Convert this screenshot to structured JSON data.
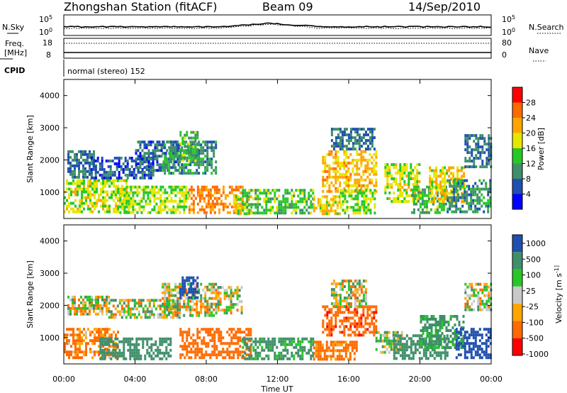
{
  "header": {
    "station": "Zhongshan Station (fitACF)",
    "beam": "Beam 09",
    "date": "14/Sep/2010"
  },
  "top_panels": {
    "nsky_label": "N.Sky",
    "nsearch_label": "N.Search",
    "nsky_ticks": [
      "10^5",
      "10^0"
    ],
    "nsearch_ticks": [
      "10^5",
      "10^0"
    ],
    "freq_label_1": "Freq.",
    "freq_label_2": "[MHz]",
    "freq_ticks": [
      "18",
      "8"
    ],
    "nave_label": "Nave",
    "nave_ticks": [
      "80",
      "0"
    ],
    "cpid_label": "CPID",
    "cpid_value": "normal (stereo) 152"
  },
  "colors": {
    "power_scale": [
      "#0000ff",
      "#1f4fb0",
      "#3f8f6a",
      "#26c826",
      "#e6e600",
      "#ffa500",
      "#ff6a00",
      "#ff0000"
    ],
    "velocity_scale": [
      "#1f4fb0",
      "#3f8f6a",
      "#26c826",
      "#c8c8c8",
      "#ffa500",
      "#ff6a00",
      "#ff0000"
    ]
  },
  "chart_data": [
    {
      "type": "heatmap",
      "title": "",
      "xlabel": "",
      "ylabel": "Slant Range [km]",
      "x_ticks": [
        "00:00",
        "04:00",
        "08:00",
        "12:00",
        "16:00",
        "20:00",
        "00:00"
      ],
      "x_range_hours": [
        0,
        24
      ],
      "y_ticks": [
        1000,
        2000,
        3000,
        4000
      ],
      "y_range_km": [
        180,
        4500
      ],
      "colorbar": {
        "label": "Power [dB]",
        "ticks": [
          4,
          8,
          12,
          16,
          20,
          24,
          28
        ]
      },
      "blobs": [
        {
          "t0": 0.0,
          "t1": 3.5,
          "r0": 350,
          "r1": 1400,
          "v": 17
        },
        {
          "t0": 0.2,
          "t1": 1.8,
          "r0": 1500,
          "r1": 2300,
          "v": 8
        },
        {
          "t0": 1.5,
          "t1": 5.0,
          "r0": 1400,
          "r1": 2100,
          "v": 6
        },
        {
          "t0": 3.0,
          "t1": 7.0,
          "r0": 350,
          "r1": 1200,
          "v": 16
        },
        {
          "t0": 4.0,
          "t1": 6.5,
          "r0": 1700,
          "r1": 2600,
          "v": 7
        },
        {
          "t0": 5.5,
          "t1": 8.5,
          "r0": 1600,
          "r1": 2600,
          "v": 10
        },
        {
          "t0": 6.5,
          "t1": 7.5,
          "r0": 2000,
          "r1": 2900,
          "v": 13
        },
        {
          "t0": 7.0,
          "t1": 10.0,
          "r0": 350,
          "r1": 1200,
          "v": 24
        },
        {
          "t0": 9.5,
          "t1": 10.5,
          "r0": 350,
          "r1": 900,
          "v": 18
        },
        {
          "t0": 10.0,
          "t1": 14.0,
          "r0": 350,
          "r1": 1100,
          "v": 14
        },
        {
          "t0": 14.0,
          "t1": 15.5,
          "r0": 350,
          "r1": 900,
          "v": 18
        },
        {
          "t0": 14.5,
          "t1": 17.5,
          "r0": 1000,
          "r1": 2300,
          "v": 21
        },
        {
          "t0": 15.0,
          "t1": 17.5,
          "r0": 2300,
          "r1": 3000,
          "v": 8
        },
        {
          "t0": 15.5,
          "t1": 17.5,
          "r0": 350,
          "r1": 1100,
          "v": 16
        },
        {
          "t0": 18.0,
          "t1": 20.0,
          "r0": 700,
          "r1": 1900,
          "v": 17
        },
        {
          "t0": 19.5,
          "t1": 21.5,
          "r0": 350,
          "r1": 1200,
          "v": 13
        },
        {
          "t0": 20.5,
          "t1": 22.5,
          "r0": 700,
          "r1": 1800,
          "v": 19
        },
        {
          "t0": 21.5,
          "t1": 24.0,
          "r0": 350,
          "r1": 1400,
          "v": 10
        },
        {
          "t0": 22.5,
          "t1": 24.0,
          "r0": 1800,
          "r1": 2800,
          "v": 8
        }
      ]
    },
    {
      "type": "heatmap",
      "title": "",
      "xlabel": "Time UT",
      "ylabel": "Slant Range [km]",
      "x_ticks": [
        "00:00",
        "04:00",
        "08:00",
        "12:00",
        "16:00",
        "20:00",
        "00:00"
      ],
      "x_range_hours": [
        0,
        24
      ],
      "y_ticks": [
        1000,
        2000,
        3000,
        4000
      ],
      "y_range_km": [
        180,
        4500
      ],
      "colorbar": {
        "label": "Velocity [m s^-1]",
        "ticks": [
          "1000",
          "500",
          "100",
          "25",
          "-25",
          "-100",
          "-500",
          "-1000"
        ]
      },
      "blobs": [
        {
          "t0": 0.0,
          "t1": 3.0,
          "r0": 350,
          "r1": 1300,
          "v": -150
        },
        {
          "t0": 0.2,
          "t1": 2.5,
          "r0": 1700,
          "r1": 2300,
          "v": 0
        },
        {
          "t0": 2.5,
          "t1": 6.5,
          "r0": 1600,
          "r1": 2200,
          "v": 0
        },
        {
          "t0": 2.0,
          "t1": 6.0,
          "r0": 350,
          "r1": 1000,
          "v": 300
        },
        {
          "t0": 5.5,
          "t1": 8.5,
          "r0": 1700,
          "r1": 2700,
          "v": 0
        },
        {
          "t0": 6.5,
          "t1": 7.5,
          "r0": 2200,
          "r1": 2900,
          "v": 700
        },
        {
          "t0": 6.5,
          "t1": 10.5,
          "r0": 350,
          "r1": 1300,
          "v": -300
        },
        {
          "t0": 8.5,
          "t1": 10.0,
          "r0": 1800,
          "r1": 2600,
          "v": 0
        },
        {
          "t0": 10.0,
          "t1": 14.0,
          "r0": 350,
          "r1": 1000,
          "v": 200
        },
        {
          "t0": 14.0,
          "t1": 16.5,
          "r0": 350,
          "r1": 900,
          "v": -200
        },
        {
          "t0": 14.5,
          "t1": 17.5,
          "r0": 1100,
          "r1": 2000,
          "v": -400
        },
        {
          "t0": 15.0,
          "t1": 17.0,
          "r0": 2000,
          "r1": 2800,
          "v": 0
        },
        {
          "t0": 17.5,
          "t1": 19.0,
          "r0": 500,
          "r1": 1200,
          "v": 60
        },
        {
          "t0": 18.5,
          "t1": 21.5,
          "r0": 350,
          "r1": 1100,
          "v": 300
        },
        {
          "t0": 20.0,
          "t1": 22.5,
          "r0": 700,
          "r1": 1700,
          "v": 200
        },
        {
          "t0": 22.0,
          "t1": 24.0,
          "r0": 350,
          "r1": 1300,
          "v": 700
        },
        {
          "t0": 22.5,
          "t1": 24.0,
          "r0": 1900,
          "r1": 2700,
          "v": 0
        }
      ]
    }
  ]
}
